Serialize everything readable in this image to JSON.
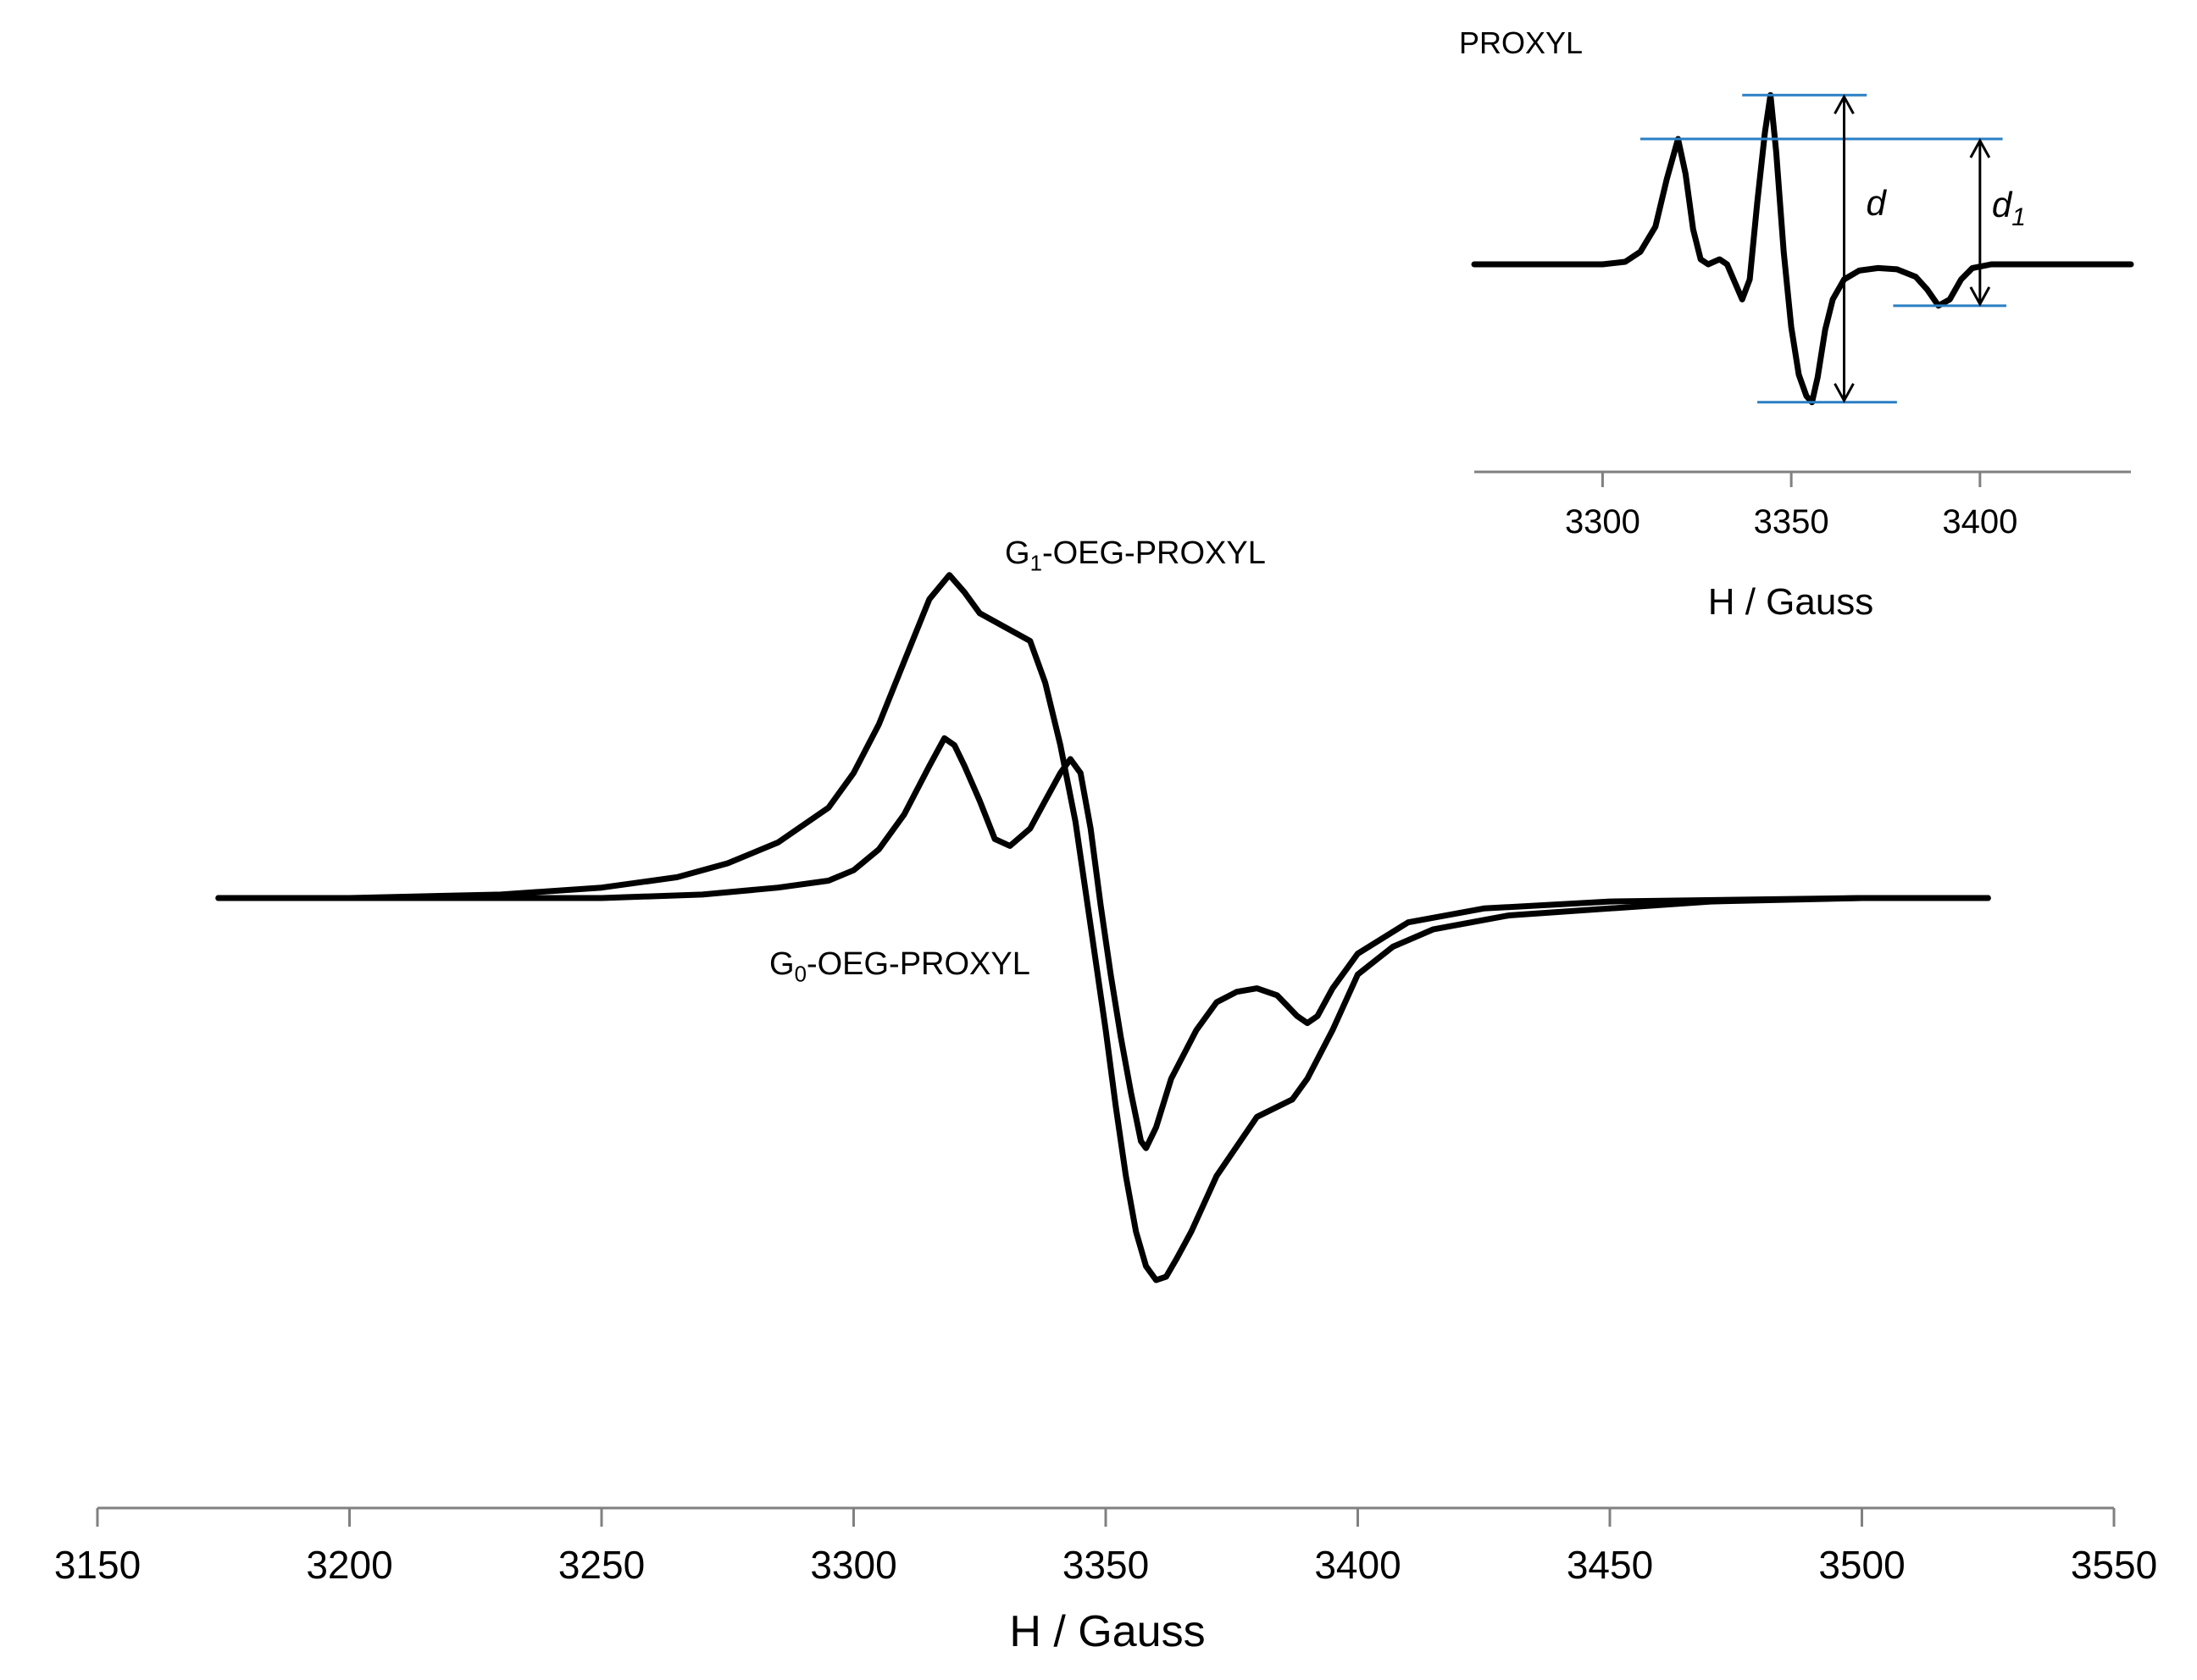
{
  "chart_data": [
    {
      "type": "line",
      "name": "main",
      "xlabel": "H / Gauss",
      "xlim": [
        3150,
        3550
      ],
      "xticks": [
        3150,
        3200,
        3250,
        3300,
        3350,
        3400,
        3450,
        3500,
        3550
      ],
      "ylim": [
        -1.3,
        1.2
      ],
      "series": [
        {
          "name": "G1-OEG-PROXYL",
          "label_main": "G",
          "label_sub": "1",
          "label_rest": "-OEG-PROXYL",
          "x": [
            3174,
            3200,
            3230,
            3250,
            3265,
            3275,
            3285,
            3295,
            3300,
            3305,
            3310,
            3315,
            3319,
            3322,
            3325,
            3330,
            3335,
            3338,
            3341,
            3344,
            3347,
            3350,
            3352,
            3354,
            3356,
            3358,
            3360,
            3362,
            3364,
            3367,
            3372,
            3380,
            3387,
            3390,
            3395,
            3400,
            3407,
            3415,
            3430,
            3450,
            3470,
            3500,
            3525
          ],
          "y": [
            0,
            0,
            0.01,
            0.03,
            0.06,
            0.1,
            0.16,
            0.26,
            0.36,
            0.5,
            0.68,
            0.86,
            0.93,
            0.88,
            0.82,
            0.78,
            0.74,
            0.62,
            0.44,
            0.22,
            -0.08,
            -0.38,
            -0.6,
            -0.8,
            -0.96,
            -1.06,
            -1.1,
            -1.09,
            -1.04,
            -0.96,
            -0.8,
            -0.63,
            -0.58,
            -0.52,
            -0.38,
            -0.22,
            -0.14,
            -0.09,
            -0.05,
            -0.03,
            -0.01,
            0,
            0
          ]
        },
        {
          "name": "G0-OEG-PROXYL",
          "label_main": "G",
          "label_sub": "0",
          "label_rest": "-OEG-PROXYL",
          "x": [
            3174,
            3250,
            3270,
            3285,
            3295,
            3300,
            3305,
            3310,
            3315,
            3318,
            3320,
            3322,
            3325,
            3328,
            3331,
            3335,
            3338,
            3341,
            3343,
            3345,
            3347,
            3349,
            3351,
            3353,
            3355,
            3357,
            3358,
            3360,
            3363,
            3368,
            3372,
            3376,
            3380,
            3384,
            3388,
            3390,
            3392,
            3395,
            3400,
            3410,
            3425,
            3450,
            3500,
            3525
          ],
          "y": [
            0,
            0,
            0.01,
            0.03,
            0.05,
            0.08,
            0.14,
            0.24,
            0.38,
            0.46,
            0.44,
            0.38,
            0.28,
            0.17,
            0.15,
            0.2,
            0.28,
            0.36,
            0.4,
            0.36,
            0.2,
            -0.02,
            -0.22,
            -0.4,
            -0.56,
            -0.7,
            -0.72,
            -0.66,
            -0.52,
            -0.38,
            -0.3,
            -0.27,
            -0.26,
            -0.28,
            -0.34,
            -0.36,
            -0.34,
            -0.26,
            -0.16,
            -0.07,
            -0.03,
            -0.01,
            0,
            0
          ]
        }
      ]
    },
    {
      "type": "line",
      "name": "inset",
      "title": "PROXYL",
      "xlabel": "H / Gauss",
      "xlim": [
        3266,
        3440
      ],
      "xticks": [
        3300,
        3350,
        3400
      ],
      "ylim": [
        -1.0,
        1.35
      ],
      "annotations": [
        {
          "label_main": "d",
          "label_sub": ""
        },
        {
          "label_main": "d",
          "label_sub": "1"
        }
      ],
      "series": [
        {
          "name": "PROXYL",
          "x": [
            3266,
            3300,
            3306,
            3310,
            3314,
            3317,
            3320,
            3322,
            3324,
            3326,
            3328,
            3331,
            3333,
            3335,
            3337,
            3339,
            3341,
            3343,
            3344.5,
            3346,
            3348,
            3350,
            3352,
            3354,
            3355.5,
            3357,
            3359,
            3361,
            3364,
            3368,
            3373,
            3378,
            3383,
            3386,
            3389,
            3392,
            3395,
            3398,
            3403,
            3410,
            3440
          ],
          "y": [
            0,
            0,
            0.02,
            0.1,
            0.3,
            0.68,
            1.0,
            0.72,
            0.28,
            0.04,
            0.0,
            0.04,
            0.0,
            -0.14,
            -0.28,
            -0.12,
            0.5,
            1.05,
            1.35,
            0.9,
            0.1,
            -0.5,
            -0.88,
            -1.05,
            -1.1,
            -0.9,
            -0.52,
            -0.28,
            -0.12,
            -0.05,
            -0.03,
            -0.04,
            -0.1,
            -0.2,
            -0.33,
            -0.28,
            -0.12,
            -0.03,
            0,
            0,
            0
          ]
        }
      ]
    }
  ]
}
